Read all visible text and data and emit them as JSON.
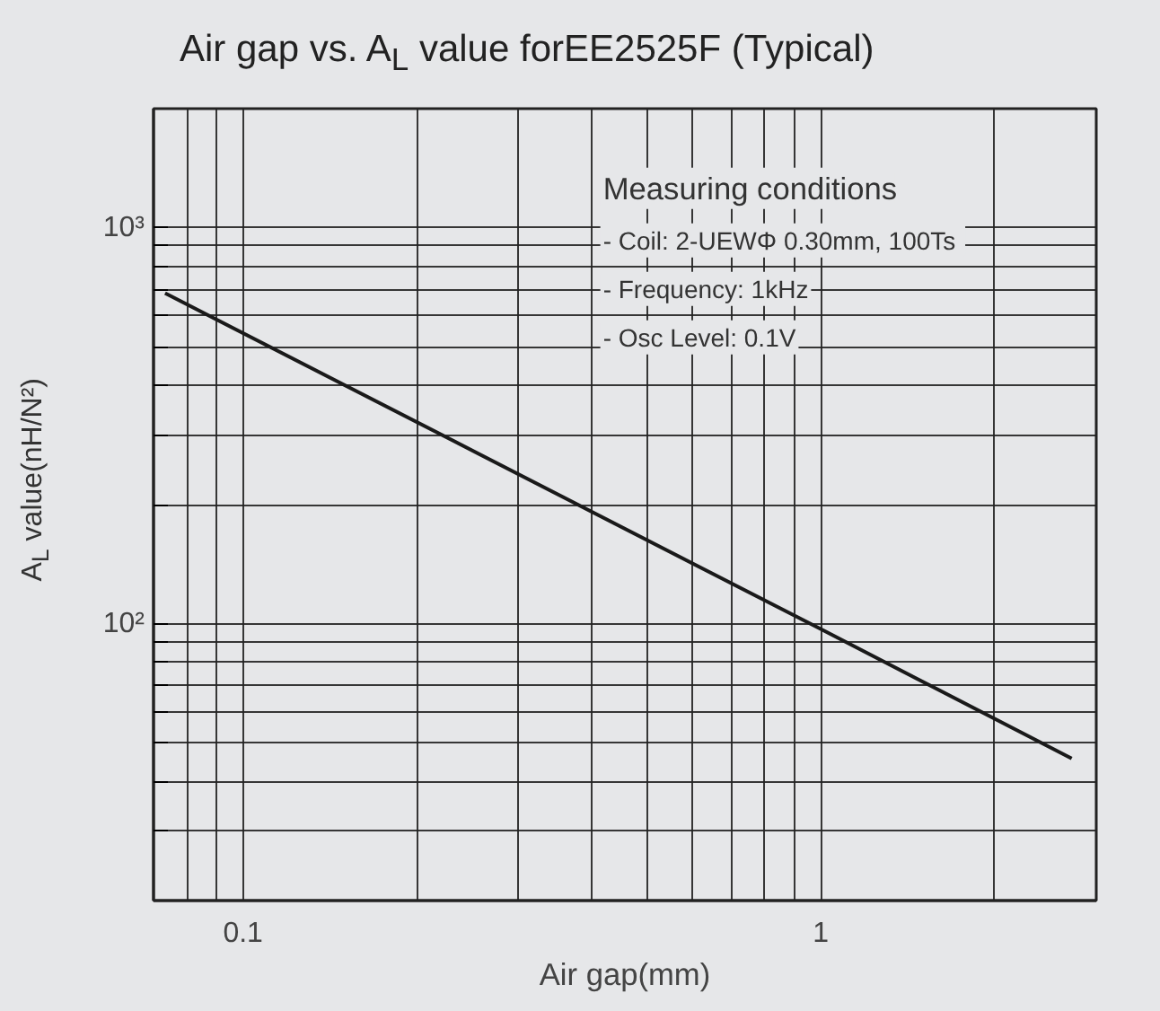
{
  "chart_data": {
    "type": "line",
    "title": "Air gap vs. A$_{L}$ value forEE2525F (Typical)",
    "xlabel": "Air gap(mm)",
    "ylabel": "A$_{L}$ value(nH/N²)",
    "series": [
      {
        "color": "#1a1a1a",
        "x": [
          0.0733,
          1,
          2.72
        ],
        "values": [
          684,
          97,
          45.7
        ]
      }
    ],
    "log": "xy",
    "grid": true,
    "marker": "none",
    "line_style": "solid",
    "xlim": [
      0.07,
      3
    ],
    "ylim": [
      20,
      2000
    ],
    "xticks": [
      {
        "value": 0.08,
        "label": null
      },
      {
        "value": 0.09,
        "label": null
      },
      0.1,
      {
        "value": 0.2,
        "label": null
      },
      {
        "value": 0.3,
        "label": null
      },
      {
        "value": 0.4,
        "label": null
      },
      {
        "value": 0.5,
        "label": null
      },
      {
        "value": 0.6,
        "label": null
      },
      {
        "value": 0.7,
        "label": null
      },
      {
        "value": 0.8,
        "label": null
      },
      {
        "value": 0.9,
        "label": null
      },
      1,
      {
        "value": 2,
        "label": null
      }
    ],
    "yticks": [
      {
        "value": 30,
        "label": null
      },
      {
        "value": 40,
        "label": null
      },
      {
        "value": 50,
        "label": null
      },
      {
        "value": 60,
        "label": null
      },
      {
        "value": 70,
        "label": null
      },
      {
        "value": 80,
        "label": null
      },
      {
        "value": 90,
        "label": null
      },
      {
        "value": 100,
        "label": "10²"
      },
      {
        "value": 200,
        "label": null
      },
      {
        "value": 300,
        "label": null
      },
      {
        "value": 400,
        "label": null
      },
      {
        "value": 500,
        "label": null
      },
      {
        "value": 600,
        "label": null
      },
      {
        "value": 700,
        "label": null
      },
      {
        "value": 800,
        "label": null
      },
      {
        "value": 900,
        "label": null
      },
      {
        "value": 1000,
        "label": "10³"
      }
    ],
    "annotations": [
      "Measuring conditions",
      "- Coil: 2-UEWΦ  0.30mm, 100Ts",
      "- Frequency: 1kHz",
      "- Osc Level: 0.1V"
    ]
  }
}
